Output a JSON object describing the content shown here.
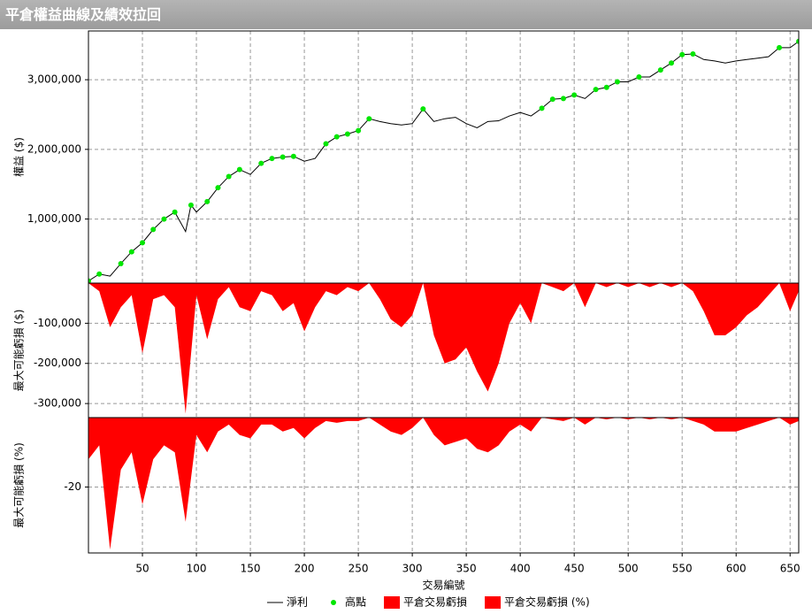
{
  "window_title": "平倉權益曲線及績效拉回",
  "chart_data": [
    {
      "type": "line",
      "ylabel": "權益 ($)",
      "xlim": [
        0,
        658
      ],
      "xticks": [
        50,
        100,
        150,
        200,
        250,
        300,
        350,
        400,
        450,
        500,
        550,
        600,
        650
      ],
      "ylim": [
        80000,
        3700000
      ],
      "yticks": [
        {
          "value": 1000000,
          "label": "1,000,000"
        },
        {
          "value": 2000000,
          "label": "2,000,000"
        },
        {
          "value": 3000000,
          "label": "3,000,000"
        }
      ],
      "grid": true,
      "series": [
        {
          "name": "淨利",
          "color": "#000000",
          "marker": "line",
          "x": [
            0,
            10,
            20,
            30,
            40,
            50,
            60,
            70,
            80,
            90,
            95,
            100,
            110,
            120,
            130,
            140,
            150,
            160,
            170,
            180,
            190,
            200,
            210,
            220,
            230,
            240,
            250,
            260,
            270,
            280,
            290,
            300,
            310,
            320,
            330,
            340,
            350,
            360,
            370,
            380,
            390,
            400,
            410,
            420,
            430,
            440,
            450,
            460,
            470,
            480,
            490,
            500,
            510,
            520,
            530,
            540,
            550,
            560,
            570,
            580,
            590,
            600,
            610,
            620,
            630,
            640,
            650,
            658
          ],
          "values": [
            110000,
            210000,
            180000,
            360000,
            530000,
            660000,
            850000,
            1000000,
            1100000,
            820000,
            1200000,
            1100000,
            1250000,
            1450000,
            1610000,
            1710000,
            1640000,
            1800000,
            1870000,
            1890000,
            1900000,
            1830000,
            1870000,
            2080000,
            2180000,
            2220000,
            2270000,
            2440000,
            2400000,
            2370000,
            2350000,
            2370000,
            2580000,
            2400000,
            2440000,
            2460000,
            2370000,
            2310000,
            2400000,
            2410000,
            2480000,
            2530000,
            2480000,
            2590000,
            2720000,
            2730000,
            2780000,
            2730000,
            2860000,
            2890000,
            2970000,
            2970000,
            3040000,
            3040000,
            3140000,
            3240000,
            3360000,
            3370000,
            3290000,
            3270000,
            3240000,
            3270000,
            3290000,
            3310000,
            3330000,
            3460000,
            3460000,
            3550000
          ]
        },
        {
          "name": "高點",
          "color": "#00e600",
          "marker": "dot",
          "x": [
            0,
            10,
            30,
            40,
            50,
            60,
            70,
            80,
            95,
            110,
            120,
            130,
            140,
            160,
            170,
            180,
            190,
            220,
            230,
            240,
            250,
            260,
            310,
            420,
            430,
            440,
            450,
            470,
            480,
            490,
            510,
            530,
            540,
            550,
            560,
            640,
            658
          ],
          "values": [
            110000,
            210000,
            360000,
            530000,
            660000,
            850000,
            1000000,
            1100000,
            1200000,
            1250000,
            1450000,
            1610000,
            1710000,
            1800000,
            1870000,
            1890000,
            1900000,
            2080000,
            2180000,
            2220000,
            2270000,
            2440000,
            2580000,
            2590000,
            2720000,
            2730000,
            2780000,
            2860000,
            2890000,
            2970000,
            3040000,
            3140000,
            3240000,
            3360000,
            3370000,
            3460000,
            3550000
          ]
        }
      ]
    },
    {
      "type": "area",
      "ylabel": "最大可能虧損 ($)",
      "xlim": [
        0,
        658
      ],
      "xticks": [
        50,
        100,
        150,
        200,
        250,
        300,
        350,
        400,
        450,
        500,
        550,
        600,
        650
      ],
      "ylim": [
        -335000,
        0
      ],
      "yticks": [
        {
          "value": -300000,
          "label": "-300,000"
        },
        {
          "value": -200000,
          "label": "-200,000"
        },
        {
          "value": -100000,
          "label": "-100,000"
        }
      ],
      "grid": true,
      "series": [
        {
          "name": "平倉交易虧損",
          "color": "#ff0000",
          "x": [
            0,
            10,
            20,
            30,
            40,
            50,
            60,
            70,
            80,
            90,
            100,
            110,
            120,
            130,
            140,
            150,
            160,
            170,
            180,
            190,
            200,
            210,
            220,
            230,
            240,
            250,
            260,
            270,
            280,
            290,
            300,
            310,
            320,
            330,
            340,
            350,
            360,
            370,
            380,
            390,
            400,
            410,
            420,
            430,
            440,
            450,
            460,
            470,
            480,
            490,
            500,
            510,
            520,
            530,
            540,
            550,
            560,
            570,
            580,
            590,
            600,
            610,
            620,
            630,
            640,
            650,
            658
          ],
          "values": [
            0,
            -20000,
            -110000,
            -60000,
            -30000,
            -175000,
            -40000,
            -30000,
            -60000,
            -325000,
            -30000,
            -140000,
            -40000,
            -10000,
            -60000,
            -70000,
            -20000,
            -30000,
            -70000,
            -50000,
            -120000,
            -60000,
            -20000,
            -30000,
            -10000,
            -20000,
            0,
            -40000,
            -90000,
            -110000,
            -80000,
            0,
            -130000,
            -200000,
            -190000,
            -160000,
            -220000,
            -270000,
            -200000,
            -100000,
            -50000,
            -100000,
            0,
            -10000,
            -20000,
            0,
            -60000,
            0,
            -10000,
            0,
            -10000,
            0,
            -10000,
            0,
            -10000,
            0,
            -20000,
            -70000,
            -130000,
            -130000,
            -110000,
            -80000,
            -60000,
            -30000,
            0,
            -70000,
            -20000
          ]
        }
      ]
    },
    {
      "type": "area",
      "ylabel": "最大可能虧損 (%)",
      "xlabel": "交易編號",
      "xlim": [
        0,
        658
      ],
      "xticks": [
        50,
        100,
        150,
        200,
        250,
        300,
        350,
        400,
        450,
        500,
        550,
        600,
        650
      ],
      "ylim": [
        -39,
        0
      ],
      "yticks": [
        -20
      ],
      "grid": true,
      "series": [
        {
          "name": "平倉交易虧損 (%)",
          "color": "#ff0000",
          "x": [
            0,
            10,
            20,
            30,
            40,
            50,
            60,
            70,
            80,
            90,
            100,
            110,
            120,
            130,
            140,
            150,
            160,
            170,
            180,
            190,
            200,
            210,
            220,
            230,
            240,
            250,
            260,
            270,
            280,
            290,
            300,
            310,
            320,
            330,
            340,
            350,
            360,
            370,
            380,
            390,
            400,
            410,
            420,
            430,
            440,
            450,
            460,
            470,
            480,
            490,
            500,
            510,
            520,
            530,
            540,
            550,
            560,
            570,
            580,
            590,
            600,
            610,
            620,
            630,
            640,
            650,
            658
          ],
          "values": [
            -12,
            -8,
            -38,
            -15,
            -10,
            -25,
            -12,
            -8,
            -10,
            -30,
            -5,
            -10,
            -4,
            -2,
            -5,
            -6,
            -2,
            -2,
            -4,
            -3,
            -6,
            -3,
            -1,
            -1.5,
            -1,
            -1,
            0,
            -2,
            -4,
            -5,
            -3,
            0,
            -5,
            -8,
            -7,
            -6,
            -9,
            -10,
            -8,
            -4,
            -2,
            -4,
            0,
            -0.5,
            -1,
            0,
            -2,
            0,
            -0.5,
            0,
            -0.5,
            0,
            -0.5,
            0,
            -0.5,
            0,
            -1,
            -2,
            -4,
            -4,
            -4,
            -3,
            -2,
            -1,
            0,
            -2,
            -1
          ]
        }
      ]
    }
  ]
}
